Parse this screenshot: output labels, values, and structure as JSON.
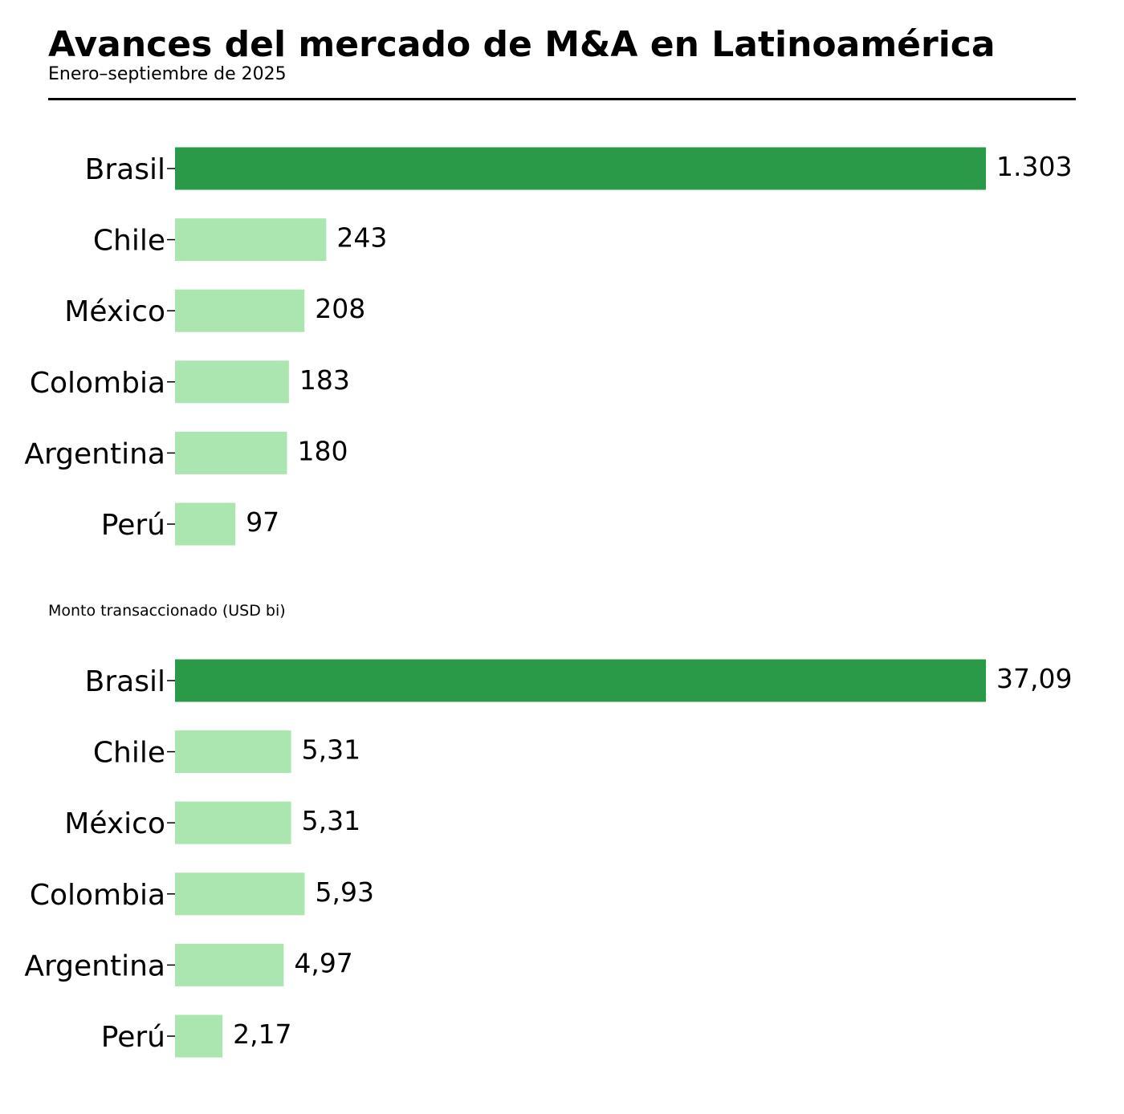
{
  "header": {
    "title": "Avances del mercado de M&A en Latinoamérica",
    "subtitle": "Enero–septiembre de 2025"
  },
  "colors": {
    "highlight": "#2a9a48",
    "default": "#abe5b0",
    "rule": "#000000"
  },
  "chart_data": [
    {
      "type": "bar",
      "orientation": "horizontal",
      "title": "",
      "categories": [
        "Brasil",
        "Chile",
        "México",
        "Colombia",
        "Argentina",
        "Perú"
      ],
      "values": [
        1303,
        243,
        208,
        183,
        180,
        97
      ],
      "value_labels": [
        "1.303",
        "243",
        "208",
        "183",
        "180",
        "97"
      ],
      "highlight_category": "Brasil",
      "xlim": [
        0,
        1303
      ],
      "grid": false,
      "xlabel": "",
      "ylabel": ""
    },
    {
      "type": "bar",
      "orientation": "horizontal",
      "title": "Monto transaccionado (USD bi)",
      "categories": [
        "Brasil",
        "Chile",
        "México",
        "Colombia",
        "Argentina",
        "Perú"
      ],
      "values": [
        37.09,
        5.31,
        5.31,
        5.93,
        4.97,
        2.17
      ],
      "value_labels": [
        "37,09",
        "5,31",
        "5,31",
        "5,93",
        "4,97",
        "2,17"
      ],
      "highlight_category": "Brasil",
      "xlim": [
        0,
        37.09
      ],
      "grid": false,
      "xlabel": "",
      "ylabel": ""
    }
  ]
}
